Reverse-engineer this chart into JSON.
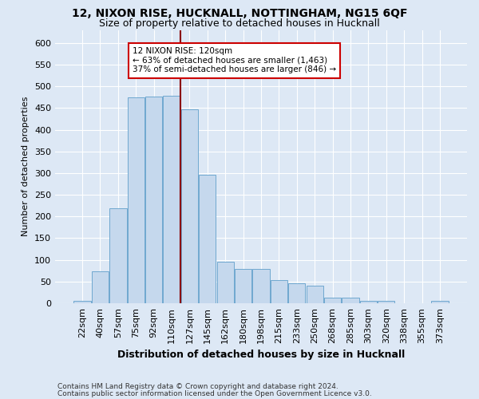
{
  "title1": "12, NIXON RISE, HUCKNALL, NOTTINGHAM, NG15 6QF",
  "title2": "Size of property relative to detached houses in Hucknall",
  "xlabel": "Distribution of detached houses by size in Hucknall",
  "ylabel": "Number of detached properties",
  "categories": [
    "22sqm",
    "40sqm",
    "57sqm",
    "75sqm",
    "92sqm",
    "110sqm",
    "127sqm",
    "145sqm",
    "162sqm",
    "180sqm",
    "198sqm",
    "215sqm",
    "233sqm",
    "250sqm",
    "268sqm",
    "285sqm",
    "303sqm",
    "320sqm",
    "338sqm",
    "355sqm",
    "373sqm"
  ],
  "values": [
    5,
    73,
    218,
    475,
    476,
    478,
    447,
    296,
    95,
    79,
    79,
    53,
    46,
    40,
    13,
    12,
    5,
    5,
    0,
    0,
    5
  ],
  "bar_color": "#c5d8ed",
  "bar_edge_color": "#6fa8d0",
  "vline_index": 5,
  "vline_color": "#8b0000",
  "annotation_text": "12 NIXON RISE: 120sqm\n← 63% of detached houses are smaller (1,463)\n37% of semi-detached houses are larger (846) →",
  "annotation_box_facecolor": "#ffffff",
  "annotation_box_edgecolor": "#cc0000",
  "footer1": "Contains HM Land Registry data © Crown copyright and database right 2024.",
  "footer2": "Contains public sector information licensed under the Open Government Licence v3.0.",
  "bg_color": "#dde8f5",
  "plot_bg_color": "#dde8f5",
  "grid_color": "#ffffff",
  "ylim": [
    0,
    630
  ],
  "yticks": [
    0,
    50,
    100,
    150,
    200,
    250,
    300,
    350,
    400,
    450,
    500,
    550,
    600
  ],
  "title1_fontsize": 10,
  "title2_fontsize": 9,
  "xlabel_fontsize": 9,
  "ylabel_fontsize": 8,
  "tick_fontsize": 8,
  "annot_fontsize": 7.5,
  "footer_fontsize": 6.5
}
